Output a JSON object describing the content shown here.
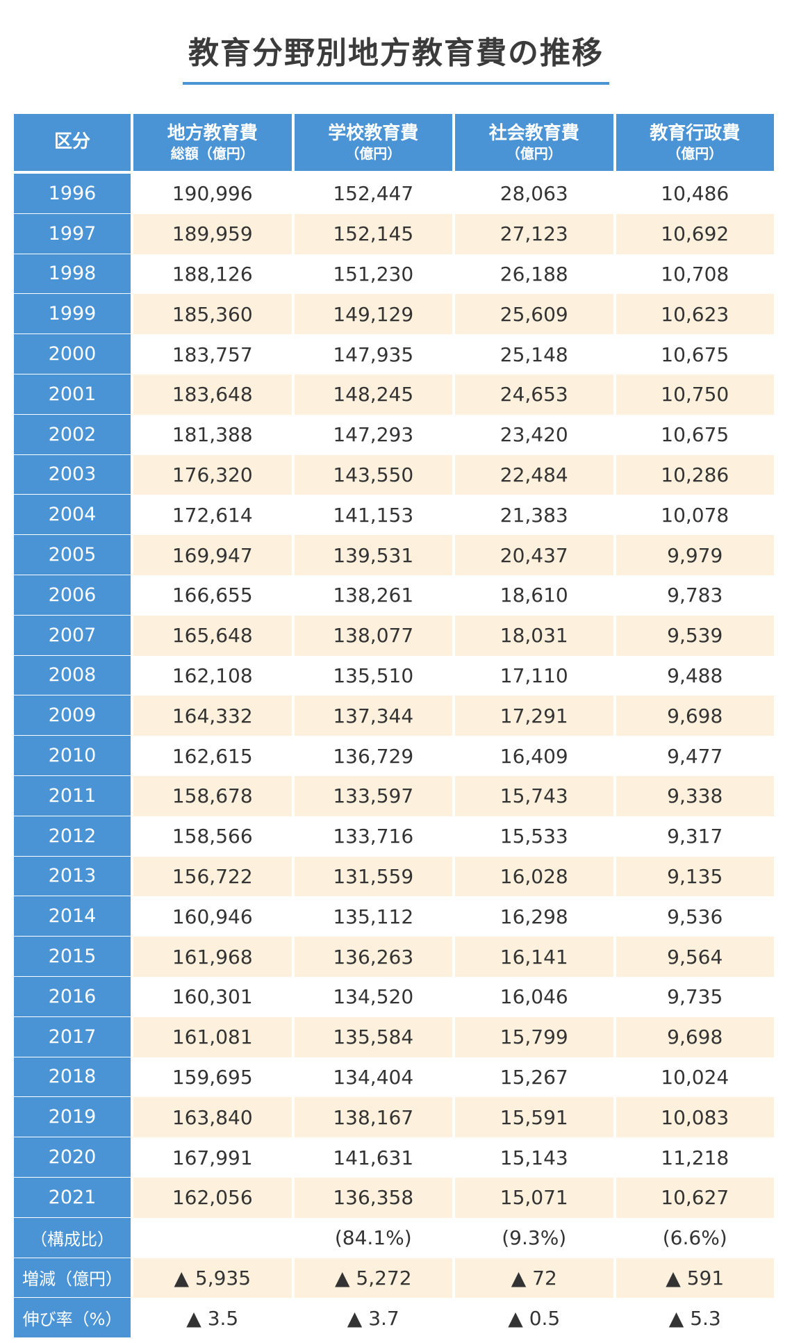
{
  "title": "教育分野別地方教育費の推移",
  "header": {
    "category": "区分",
    "col1_line1": "地方教育費",
    "col1_line2": "総額（億円）",
    "col2_line1": "学校教育費",
    "col2_line2": "（億円）",
    "col3_line1": "社会教育費",
    "col3_line2": "（億円）",
    "col4_line1": "教育行政費",
    "col4_line2": "（億円）"
  },
  "rows": [
    {
      "label": "1996",
      "values": [
        "190,996",
        "152,447",
        "28,063",
        "10,486"
      ]
    },
    {
      "label": "1997",
      "values": [
        "189,959",
        "152,145",
        "27,123",
        "10,692"
      ]
    },
    {
      "label": "1998",
      "values": [
        "188,126",
        "151,230",
        "26,188",
        "10,708"
      ]
    },
    {
      "label": "1999",
      "values": [
        "185,360",
        "149,129",
        "25,609",
        "10,623"
      ]
    },
    {
      "label": "2000",
      "values": [
        "183,757",
        "147,935",
        "25,148",
        "10,675"
      ]
    },
    {
      "label": "2001",
      "values": [
        "183,648",
        "148,245",
        "24,653",
        "10,750"
      ]
    },
    {
      "label": "2002",
      "values": [
        "181,388",
        "147,293",
        "23,420",
        "10,675"
      ]
    },
    {
      "label": "2003",
      "values": [
        "176,320",
        "143,550",
        "22,484",
        "10,286"
      ]
    },
    {
      "label": "2004",
      "values": [
        "172,614",
        "141,153",
        "21,383",
        "10,078"
      ]
    },
    {
      "label": "2005",
      "values": [
        "169,947",
        "139,531",
        "20,437",
        "9,979"
      ]
    },
    {
      "label": "2006",
      "values": [
        "166,655",
        "138,261",
        "18,610",
        "9,783"
      ]
    },
    {
      "label": "2007",
      "values": [
        "165,648",
        "138,077",
        "18,031",
        "9,539"
      ]
    },
    {
      "label": "2008",
      "values": [
        "162,108",
        "135,510",
        "17,110",
        "9,488"
      ]
    },
    {
      "label": "2009",
      "values": [
        "164,332",
        "137,344",
        "17,291",
        "9,698"
      ]
    },
    {
      "label": "2010",
      "values": [
        "162,615",
        "136,729",
        "16,409",
        "9,477"
      ]
    },
    {
      "label": "2011",
      "values": [
        "158,678",
        "133,597",
        "15,743",
        "9,338"
      ]
    },
    {
      "label": "2012",
      "values": [
        "158,566",
        "133,716",
        "15,533",
        "9,317"
      ]
    },
    {
      "label": "2013",
      "values": [
        "156,722",
        "131,559",
        "16,028",
        "9,135"
      ]
    },
    {
      "label": "2014",
      "values": [
        "160,946",
        "135,112",
        "16,298",
        "9,536"
      ]
    },
    {
      "label": "2015",
      "values": [
        "161,968",
        "136,263",
        "16,141",
        "9,564"
      ]
    },
    {
      "label": "2016",
      "values": [
        "160,301",
        "134,520",
        "16,046",
        "9,735"
      ]
    },
    {
      "label": "2017",
      "values": [
        "161,081",
        "135,584",
        "15,799",
        "9,698"
      ]
    },
    {
      "label": "2018",
      "values": [
        "159,695",
        "134,404",
        "15,267",
        "10,024"
      ]
    },
    {
      "label": "2019",
      "values": [
        "163,840",
        "138,167",
        "15,591",
        "10,083"
      ]
    },
    {
      "label": "2020",
      "values": [
        "167,991",
        "141,631",
        "15,143",
        "11,218"
      ]
    },
    {
      "label": "2021",
      "values": [
        "162,056",
        "136,358",
        "15,071",
        "10,627"
      ]
    },
    {
      "label": "（構成比）",
      "values": [
        "",
        "(84.1%)",
        "(9.3%)",
        "(6.6%)"
      ]
    },
    {
      "label": "増減（億円）",
      "values": [
        "▲ 5,935",
        "▲ 5,272",
        "▲ 72",
        "▲ 591"
      ]
    },
    {
      "label": "伸び率（%）",
      "values": [
        "▲ 3.5",
        "▲ 3.7",
        "▲ 0.5",
        "▲ 5.3"
      ]
    }
  ],
  "colors": {
    "header_blue": "#4a94d6",
    "row_alt": "#fdf0dc",
    "row_white": "#ffffff",
    "title_underline": "#4a94d6"
  }
}
